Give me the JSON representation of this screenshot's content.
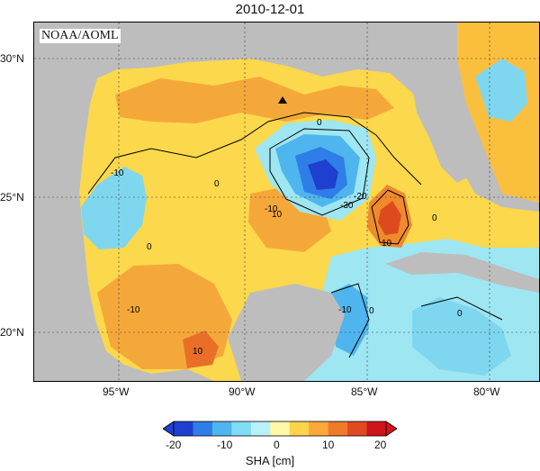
{
  "title": "2010-12-01",
  "credit": "NOAA/AOML",
  "lat_ticks": [
    "30°N",
    "25°N",
    "20°N"
  ],
  "lon_ticks": [
    "95°W",
    "90°W",
    "85°W",
    "80°W"
  ],
  "contour_labels": [
    "0",
    "0",
    "0",
    "0",
    "0",
    "0",
    "-10",
    "-10",
    "-10",
    "-10",
    "10",
    "10",
    "10",
    "-20",
    "-30"
  ],
  "colorbar": {
    "title": "SHA [cm]",
    "ticks": [
      "-20",
      "-10",
      "0",
      "10",
      "20"
    ],
    "colors": [
      "#1e3fd0",
      "#2f7ee8",
      "#4fb5ee",
      "#7fdcf5",
      "#b7f1fa",
      "#fff7a8",
      "#ffd34a",
      "#fba83a",
      "#f07a2a",
      "#e04a20",
      "#d0141c"
    ]
  },
  "marker": "triangle"
}
